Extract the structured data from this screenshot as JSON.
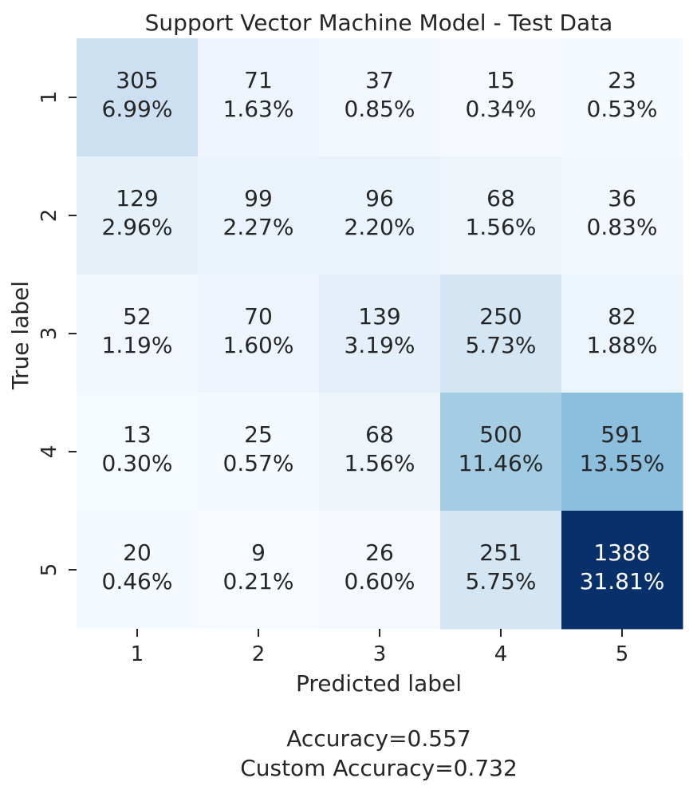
{
  "chart_data": {
    "type": "heatmap",
    "title": "Support Vector Machine Model - Test Data",
    "xlabel": "Predicted label",
    "ylabel": "True label",
    "x_tick_labels": [
      "1",
      "2",
      "3",
      "4",
      "5"
    ],
    "y_tick_labels": [
      "1",
      "2",
      "3",
      "4",
      "5"
    ],
    "values": [
      [
        305,
        71,
        37,
        15,
        23
      ],
      [
        129,
        99,
        96,
        68,
        36
      ],
      [
        52,
        70,
        139,
        250,
        82
      ],
      [
        13,
        25,
        68,
        500,
        591
      ],
      [
        20,
        9,
        26,
        251,
        1388
      ]
    ],
    "percentages": [
      [
        "6.99%",
        "1.63%",
        "0.85%",
        "0.34%",
        "0.53%"
      ],
      [
        "2.96%",
        "2.27%",
        "2.20%",
        "1.56%",
        "0.83%"
      ],
      [
        "1.19%",
        "1.60%",
        "3.19%",
        "5.73%",
        "1.88%"
      ],
      [
        "0.30%",
        "0.57%",
        "1.56%",
        "11.46%",
        "13.55%"
      ],
      [
        "0.46%",
        "0.21%",
        "0.60%",
        "5.75%",
        "31.81%"
      ]
    ],
    "colormap": "Blues",
    "colorbar": false,
    "vmin": 9,
    "vmax": 1388,
    "footer": [
      "Accuracy=0.557",
      "Custom Accuracy=0.732"
    ]
  },
  "colors": {
    "text_dark": "#262626",
    "text_light": "#ffffff",
    "cmap_low": "#f7fbff",
    "cmap_high": "#08306b"
  }
}
